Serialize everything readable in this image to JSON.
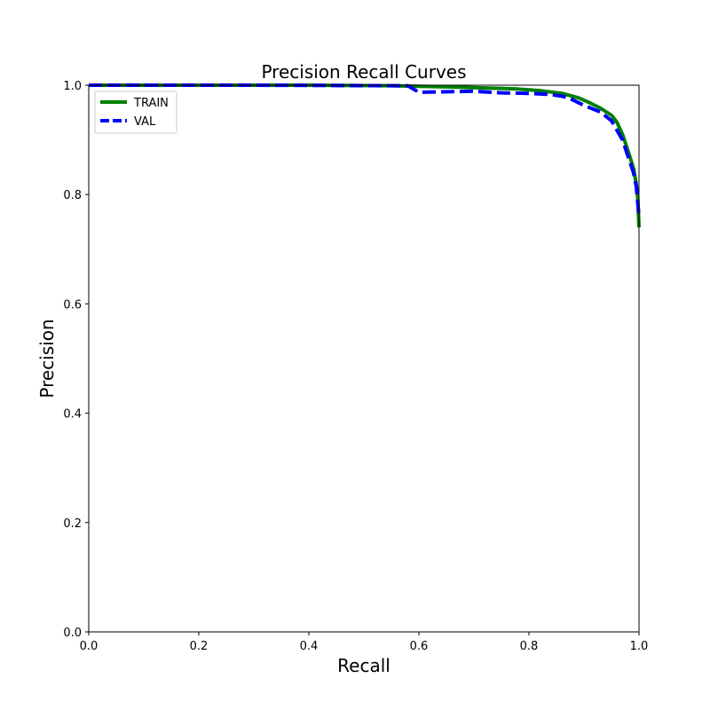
{
  "chart_data": {
    "type": "line",
    "title": "Precision Recall Curves",
    "xlabel": "Recall",
    "ylabel": "Precision",
    "xlim": [
      0.0,
      1.0
    ],
    "ylim": [
      0.0,
      1.0
    ],
    "xticks": [
      "0.0",
      "0.2",
      "0.4",
      "0.6",
      "0.8",
      "1.0"
    ],
    "yticks": [
      "0.0",
      "0.2",
      "0.4",
      "0.6",
      "0.8",
      "1.0"
    ],
    "grid": false,
    "legend_position": "upper-left",
    "series": [
      {
        "name": "TRAIN",
        "color": "#008000",
        "style": "solid",
        "points": [
          [
            0.0,
            1.0
          ],
          [
            0.2,
            1.0
          ],
          [
            0.4,
            1.0
          ],
          [
            0.55,
            0.999
          ],
          [
            0.65,
            0.997
          ],
          [
            0.72,
            0.995
          ],
          [
            0.78,
            0.993
          ],
          [
            0.82,
            0.99
          ],
          [
            0.86,
            0.985
          ],
          [
            0.89,
            0.977
          ],
          [
            0.91,
            0.968
          ],
          [
            0.93,
            0.958
          ],
          [
            0.95,
            0.945
          ],
          [
            0.96,
            0.932
          ],
          [
            0.97,
            0.91
          ],
          [
            0.98,
            0.88
          ],
          [
            0.99,
            0.848
          ],
          [
            0.995,
            0.82
          ],
          [
            0.998,
            0.79
          ],
          [
            1.0,
            0.74
          ]
        ]
      },
      {
        "name": "VAL",
        "color": "#0000ff",
        "style": "dashed",
        "points": [
          [
            0.0,
            1.0
          ],
          [
            0.3,
            1.0
          ],
          [
            0.58,
            0.999
          ],
          [
            0.6,
            0.987
          ],
          [
            0.65,
            0.988
          ],
          [
            0.7,
            0.989
          ],
          [
            0.75,
            0.986
          ],
          [
            0.8,
            0.985
          ],
          [
            0.84,
            0.983
          ],
          [
            0.87,
            0.978
          ],
          [
            0.9,
            0.963
          ],
          [
            0.93,
            0.951
          ],
          [
            0.95,
            0.935
          ],
          [
            0.97,
            0.9
          ],
          [
            0.98,
            0.87
          ],
          [
            0.99,
            0.84
          ],
          [
            0.995,
            0.815
          ],
          [
            1.0,
            0.76
          ]
        ]
      }
    ]
  }
}
